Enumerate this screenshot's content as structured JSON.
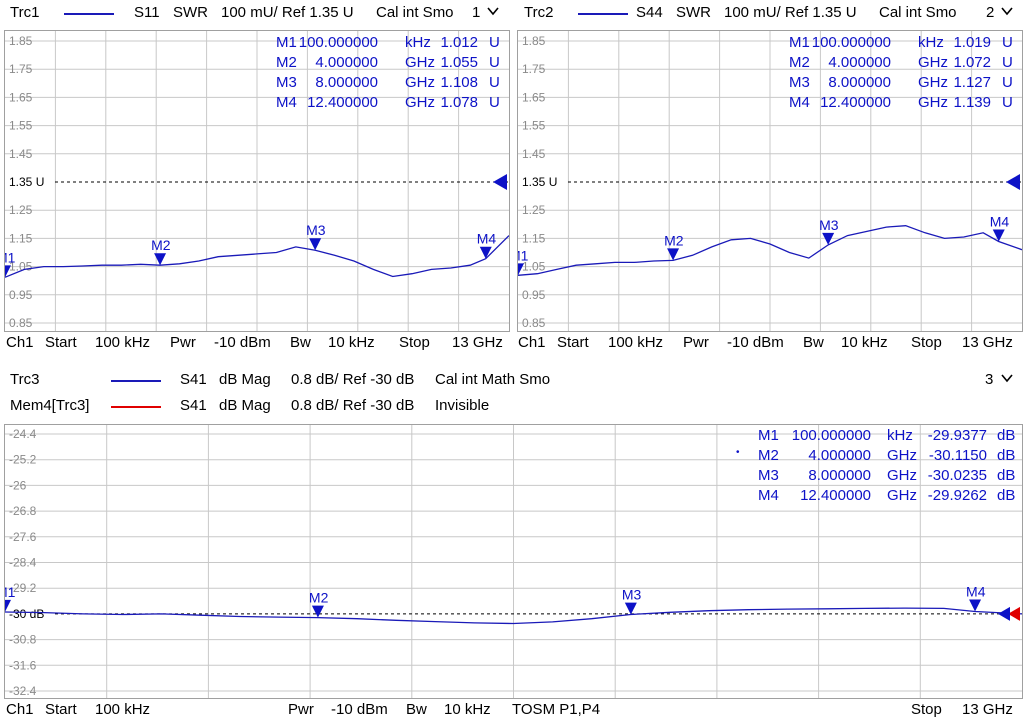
{
  "colors": {
    "trace": "#1a1ab8",
    "memory": "#e00000",
    "marker": "#0d12c7",
    "grid": "#c8c8c8",
    "ref_line": "#000000"
  },
  "top_left": {
    "trace_name": "Trc1",
    "param": "S11",
    "format": "SWR",
    "scale": "100 mU/ Ref 1.35 U",
    "flags": "Cal int Smo",
    "window": "1",
    "yticks": [
      "1.85",
      "1.75",
      "1.65",
      "1.55",
      "1.45",
      "1.35 U",
      "1.25",
      "1.15",
      "1.05",
      "0.95",
      "0.85"
    ],
    "markers": [
      {
        "name": "M1",
        "freq": "100.000000",
        "unit": "kHz",
        "value": "1.012",
        "vunit": "U"
      },
      {
        "name": "M2",
        "freq": "4.000000",
        "unit": "GHz",
        "value": "1.055",
        "vunit": "U"
      },
      {
        "name": "M3",
        "freq": "8.000000",
        "unit": "GHz",
        "value": "1.108",
        "vunit": "U"
      },
      {
        "name": "M4",
        "freq": "12.400000",
        "unit": "GHz",
        "value": "1.078",
        "vunit": "U"
      }
    ],
    "footer": {
      "ch": "Ch1",
      "start": "Start",
      "start_val": "100 kHz",
      "pwr": "Pwr",
      "pwr_val": "-10 dBm",
      "bw": "Bw",
      "bw_val": "10 kHz",
      "stop": "Stop",
      "stop_val": "13 GHz"
    }
  },
  "top_right": {
    "trace_name": "Trc2",
    "param": "S44",
    "format": "SWR",
    "scale": "100 mU/ Ref 1.35 U",
    "flags": "Cal int Smo",
    "window": "2",
    "yticks": [
      "1.85",
      "1.75",
      "1.65",
      "1.55",
      "1.45",
      "1.35 U",
      "1.25",
      "1.15",
      "1.05",
      "0.95",
      "0.85"
    ],
    "markers": [
      {
        "name": "M1",
        "freq": "100.000000",
        "unit": "kHz",
        "value": "1.019",
        "vunit": "U"
      },
      {
        "name": "M2",
        "freq": "4.000000",
        "unit": "GHz",
        "value": "1.072",
        "vunit": "U"
      },
      {
        "name": "M3",
        "freq": "8.000000",
        "unit": "GHz",
        "value": "1.127",
        "vunit": "U"
      },
      {
        "name": "M4",
        "freq": "12.400000",
        "unit": "GHz",
        "value": "1.139",
        "vunit": "U"
      }
    ],
    "footer": {
      "ch": "Ch1",
      "start": "Start",
      "start_val": "100 kHz",
      "pwr": "Pwr",
      "pwr_val": "-10 dBm",
      "bw": "Bw",
      "bw_val": "10 kHz",
      "stop": "Stop",
      "stop_val": "13 GHz"
    }
  },
  "bottom": {
    "trace_name": "Trc3",
    "param": "S41",
    "format": "dB Mag",
    "scale": "0.8 dB/ Ref -30 dB",
    "flags": "Cal int Math Smo",
    "window": "3",
    "mem_name": "Mem4[Trc3]",
    "mem_param": "S41",
    "mem_format": "dB Mag",
    "mem_scale": "0.8 dB/ Ref -30 dB",
    "mem_flags": "Invisible",
    "yticks": [
      "-24.4",
      "-25.2",
      "-26",
      "-26.8",
      "-27.6",
      "-28.4",
      "-29.2",
      "-30 dB",
      "-30.8",
      "-31.6",
      "-32.4"
    ],
    "markers": [
      {
        "name": "M1",
        "freq": "100.000000",
        "unit": "kHz",
        "value": "-29.9377",
        "vunit": "dB",
        "active": false
      },
      {
        "name": "M2",
        "freq": "4.000000",
        "unit": "GHz",
        "value": "-30.1150",
        "vunit": "dB",
        "active": true
      },
      {
        "name": "M3",
        "freq": "8.000000",
        "unit": "GHz",
        "value": "-30.0235",
        "vunit": "dB",
        "active": false
      },
      {
        "name": "M4",
        "freq": "12.400000",
        "unit": "GHz",
        "value": "-29.9262",
        "vunit": "dB",
        "active": false
      }
    ],
    "footer": {
      "ch": "Ch1",
      "start": "Start",
      "start_val": "100 kHz",
      "pwr": "Pwr",
      "pwr_val": "-10 dBm",
      "bw": "Bw",
      "bw_val": "10 kHz",
      "cal": "TOSM P1,P4",
      "stop": "Stop",
      "stop_val": "13 GHz"
    }
  },
  "chart_data": [
    {
      "type": "line",
      "title": "",
      "xlabel": "",
      "ylabel": "",
      "series": [
        {
          "name": "Trc1",
          "x_ghz": [
            0.0001,
            0.5,
            1,
            1.5,
            2,
            2.5,
            3,
            3.5,
            4,
            4.5,
            5,
            5.5,
            6,
            6.5,
            7,
            7.5,
            8,
            8.5,
            9,
            9.5,
            10,
            10.5,
            11,
            11.5,
            12,
            12.4,
            13
          ],
          "y": [
            1.012,
            1.04,
            1.05,
            1.05,
            1.052,
            1.055,
            1.055,
            1.058,
            1.055,
            1.06,
            1.07,
            1.085,
            1.09,
            1.095,
            1.1,
            1.12,
            1.108,
            1.09,
            1.07,
            1.04,
            1.015,
            1.025,
            1.04,
            1.045,
            1.055,
            1.078,
            1.16
          ]
        }
      ],
      "ylim": [
        0.85,
        1.85
      ],
      "xlim": [
        0.0001,
        13
      ],
      "markers": [
        {
          "name": "M1",
          "x": 0.0001,
          "y": 1.012
        },
        {
          "name": "M2",
          "x": 4,
          "y": 1.055
        },
        {
          "name": "M3",
          "x": 8,
          "y": 1.108
        },
        {
          "name": "M4",
          "x": 12.4,
          "y": 1.078
        }
      ],
      "ref": 1.35
    },
    {
      "type": "line",
      "title": "",
      "xlabel": "",
      "ylabel": "",
      "series": [
        {
          "name": "Trc2",
          "x_ghz": [
            0.0001,
            0.5,
            1,
            1.5,
            2,
            2.5,
            3,
            3.5,
            4,
            4.5,
            5,
            5.5,
            6,
            6.5,
            7,
            7.5,
            8,
            8.5,
            9,
            9.5,
            10,
            10.5,
            11,
            11.5,
            12,
            12.4,
            13
          ],
          "y": [
            1.019,
            1.025,
            1.04,
            1.055,
            1.06,
            1.065,
            1.065,
            1.07,
            1.072,
            1.09,
            1.12,
            1.145,
            1.15,
            1.13,
            1.1,
            1.08,
            1.127,
            1.16,
            1.175,
            1.19,
            1.195,
            1.17,
            1.15,
            1.155,
            1.17,
            1.139,
            1.11
          ]
        }
      ],
      "ylim": [
        0.85,
        1.85
      ],
      "xlim": [
        0.0001,
        13
      ],
      "markers": [
        {
          "name": "M1",
          "x": 0.0001,
          "y": 1.019
        },
        {
          "name": "M2",
          "x": 4,
          "y": 1.072
        },
        {
          "name": "M3",
          "x": 8,
          "y": 1.127
        },
        {
          "name": "M4",
          "x": 12.4,
          "y": 1.139
        }
      ],
      "ref": 1.35
    },
    {
      "type": "line",
      "title": "",
      "xlabel": "",
      "ylabel": "",
      "series": [
        {
          "name": "Trc3",
          "x_ghz": [
            0.0001,
            0.5,
            1,
            1.5,
            2,
            2.5,
            3,
            3.5,
            4,
            4.5,
            5,
            5.5,
            6,
            6.5,
            7,
            7.5,
            8,
            8.5,
            9,
            9.5,
            10,
            10.5,
            11,
            11.5,
            12,
            12.4,
            13
          ],
          "y": [
            -29.94,
            -29.96,
            -30.0,
            -30.02,
            -30.0,
            -30.04,
            -30.08,
            -30.1,
            -30.115,
            -30.15,
            -30.2,
            -30.24,
            -30.28,
            -30.3,
            -30.25,
            -30.15,
            -30.02,
            -29.95,
            -29.9,
            -29.87,
            -29.85,
            -29.84,
            -29.83,
            -29.82,
            -29.83,
            -29.926,
            -30.0
          ]
        }
      ],
      "ylim": [
        -32.4,
        -24.4
      ],
      "xlim": [
        0.0001,
        13
      ],
      "markers": [
        {
          "name": "M1",
          "x": 0.0001,
          "y": -29.9377
        },
        {
          "name": "M2",
          "x": 4,
          "y": -30.115
        },
        {
          "name": "M3",
          "x": 8,
          "y": -30.0235
        },
        {
          "name": "M4",
          "x": 12.4,
          "y": -29.9262
        }
      ],
      "ref": -30
    }
  ]
}
